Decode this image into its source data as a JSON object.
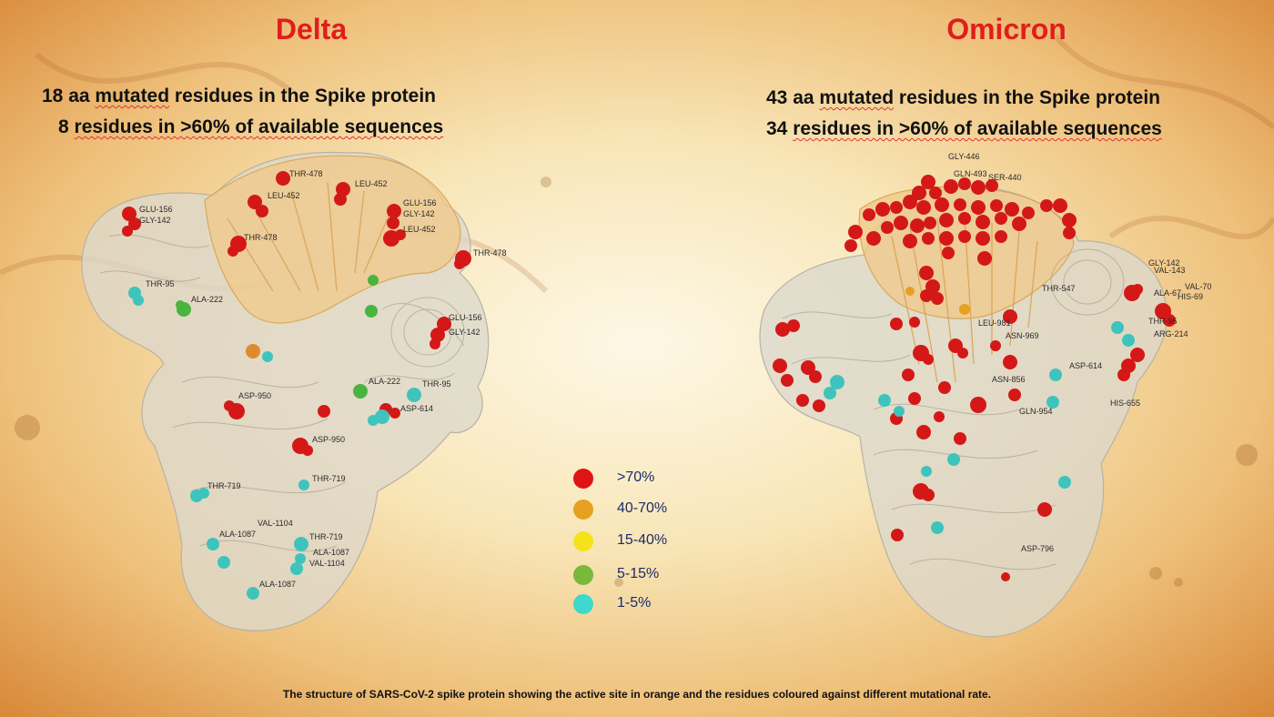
{
  "delta": {
    "title": "Delta",
    "line1_a": "18 aa ",
    "line1_b": "mutated",
    "line1_c": " residues in the Spike protein",
    "line2_a": "8 ",
    "line2_b": "residues in >60% of available sequences"
  },
  "omicron": {
    "title": "Omicron",
    "line1_a": "43 aa ",
    "line1_b": "mutated",
    "line1_c": " residues in the Spike protein",
    "line2_a": "34 ",
    "line2_b": "residues in >60% of available sequences"
  },
  "legend": [
    {
      "label": ">70%",
      "color": "#e01414"
    },
    {
      "label": "40-70%",
      "color": "#e8a020"
    },
    {
      "label": "15-40%",
      "color": "#f5e21a"
    },
    {
      "label": "5-15%",
      "color": "#7ab83c"
    },
    {
      "label": "1-5%",
      "color": "#3ed8cc"
    }
  ],
  "residue_labels": {
    "delta": [
      "GLU-156",
      "GLY-142",
      "THR-478",
      "LEU-452",
      "LEU-452",
      "GLU-156",
      "GLY-142",
      "LEU-452",
      "THR-478",
      "THR-478",
      "THR-95",
      "ALA-222",
      "GLU-156",
      "GLY-142",
      "ASP-950",
      "ALA-222",
      "THR-95",
      "ASP-614",
      "ASP-950",
      "THR-719",
      "THR-719",
      "VAL-1104",
      "ALA-1087",
      "THR-719",
      "ALA-1087",
      "VAL-1104",
      "ALA-1087"
    ],
    "omicron": [
      "GLY-446",
      "GLN-493",
      "SER-440",
      "GLY-142",
      "VAL-143",
      "ALA-67",
      "VAL-70",
      "HIS-69",
      "THR-547",
      "THR-95",
      "ARG-214",
      "ASP-614",
      "HIS-655",
      "ASN-969",
      "ASN-856",
      "GLN-954",
      "ASP-796",
      "LEU-981"
    ]
  },
  "caption": "The structure of SARS-CoV-2 spike protein showing the active site in orange and the residues coloured against different mutational rate."
}
